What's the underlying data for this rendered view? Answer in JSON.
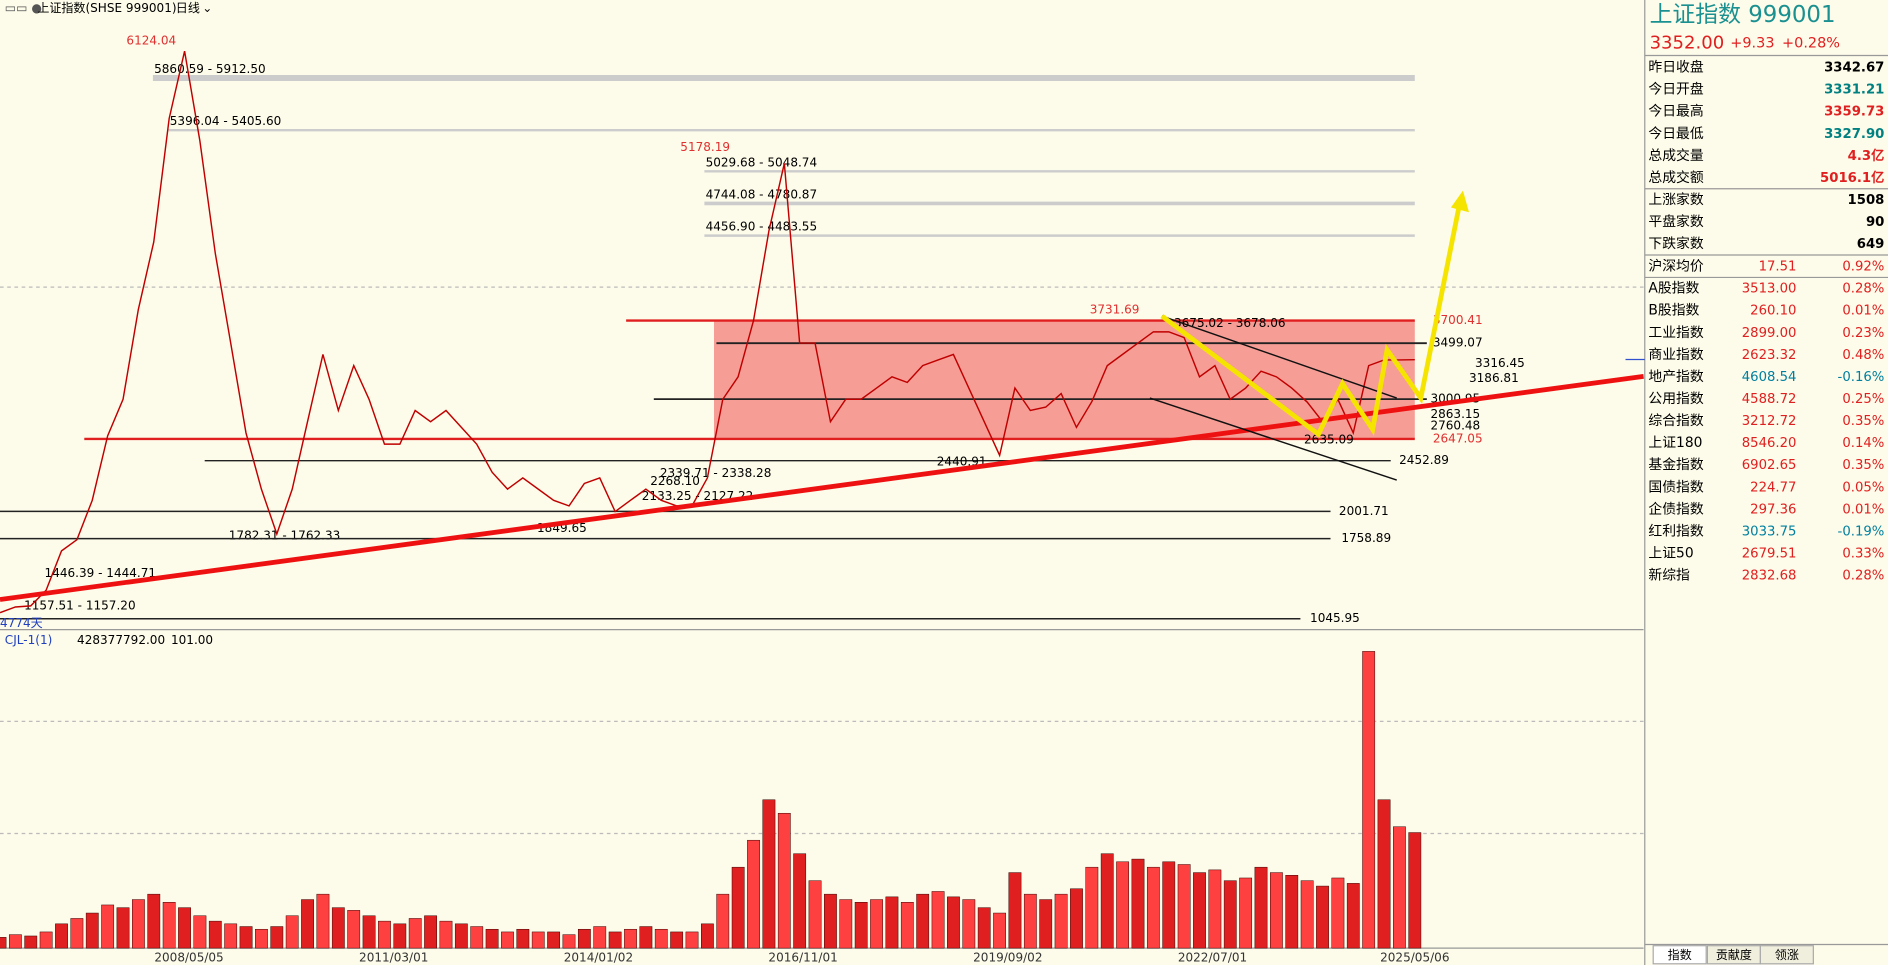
{
  "header": {
    "title": "上证指数(SHSE 999001)",
    "period": "日线"
  },
  "chart_data": {
    "type": "candlestick-screenshot",
    "ylim": [
      970,
      6555
    ],
    "price": [
      1100,
      1150,
      1160,
      1300,
      1650,
      1750,
      2100,
      2675,
      3000,
      3800,
      4400,
      5500,
      6100,
      5300,
      4300,
      3500,
      2700,
      2200,
      1800,
      2200,
      2800,
      3400,
      2900,
      3300,
      3000,
      2600,
      2600,
      2900,
      2800,
      2900,
      2750,
      2600,
      2350,
      2200,
      2300,
      2200,
      2100,
      2050,
      2250,
      2300,
      2000,
      2100,
      2200,
      2100,
      2050,
      2050,
      2300,
      3000,
      3200,
      3700,
      4500,
      5100,
      3500,
      3500,
      2800,
      3000,
      3000,
      3100,
      3200,
      3150,
      3300,
      3350,
      3400,
      3100,
      2800,
      2500,
      3100,
      2900,
      2930,
      3050,
      2750,
      2980,
      3300,
      3400,
      3500,
      3600,
      3600,
      3550,
      3200,
      3300,
      3000,
      3100,
      3250,
      3200,
      3100,
      2975,
      2800,
      3000,
      2700,
      3300,
      3350,
      3350,
      3352
    ],
    "volume_ylim": [
      0,
      1100000000
    ],
    "volume": [
      40000000,
      50000000,
      45000000,
      60000000,
      90000000,
      110000000,
      130000000,
      160000000,
      150000000,
      180000000,
      200000000,
      170000000,
      150000000,
      120000000,
      100000000,
      90000000,
      80000000,
      70000000,
      80000000,
      120000000,
      180000000,
      200000000,
      150000000,
      140000000,
      120000000,
      100000000,
      90000000,
      110000000,
      120000000,
      100000000,
      90000000,
      80000000,
      70000000,
      60000000,
      70000000,
      60000000,
      60000000,
      50000000,
      70000000,
      80000000,
      60000000,
      70000000,
      80000000,
      70000000,
      60000000,
      60000000,
      90000000,
      200000000,
      300000000,
      400000000,
      550000000,
      500000000,
      350000000,
      250000000,
      200000000,
      180000000,
      170000000,
      180000000,
      190000000,
      170000000,
      200000000,
      210000000,
      190000000,
      180000000,
      150000000,
      130000000,
      280000000,
      200000000,
      180000000,
      200000000,
      220000000,
      300000000,
      350000000,
      320000000,
      330000000,
      300000000,
      320000000,
      310000000,
      280000000,
      290000000,
      250000000,
      260000000,
      300000000,
      280000000,
      270000000,
      250000000,
      230000000,
      260000000,
      240000000,
      1100000000,
      550000000,
      450000000,
      428377792
    ],
    "peaks": [
      {
        "value": 6124.04,
        "label": "6124.04"
      },
      {
        "value": 5178.19,
        "label": "5178.19"
      },
      {
        "value": 3731.69,
        "label": "3731.69"
      },
      {
        "value": 3700.41,
        "label": "3700.41"
      },
      {
        "value": 2647.05,
        "label": "2647.05"
      }
    ],
    "levels": [
      {
        "value": 5860.59,
        "label": "5860.59 - 5912.50"
      },
      {
        "value": 5396.04,
        "label": "5396.04 - 5405.60"
      },
      {
        "value": 5029.68,
        "label": "5029.68 - 5048.74"
      },
      {
        "value": 4744.08,
        "label": "4744.08 - 4780.87"
      },
      {
        "value": 4456.9,
        "label": "4456.90 - 4483.55"
      },
      {
        "value": 3675.02,
        "label": "3675.02 - 3678.06"
      },
      {
        "value": 3499.07,
        "label": "3499.07"
      },
      {
        "value": 3316.45,
        "label": "3316.45"
      },
      {
        "value": 3186.81,
        "label": "3186.81"
      },
      {
        "value": 3000.95,
        "label": "3000.95"
      },
      {
        "value": 2863.15,
        "label": "2863.15"
      },
      {
        "value": 2760.48,
        "label": "2760.48"
      },
      {
        "value": 2635.09,
        "label": "2635.09"
      },
      {
        "value": 2452.89,
        "label": "2452.89"
      },
      {
        "value": 2440.91,
        "label": "2440.91"
      },
      {
        "value": 2339.71,
        "label": "2339.71 - 2338.28"
      },
      {
        "value": 2268.1,
        "label": "2268.10"
      },
      {
        "value": 2133.25,
        "label": "2133.25 - 2127.22"
      },
      {
        "value": 2001.71,
        "label": "2001.71"
      },
      {
        "value": 1849.65,
        "label": "1849.65"
      },
      {
        "value": 1782.31,
        "label": "1782.31 - 1762.33"
      },
      {
        "value": 1758.89,
        "label": "1758.89"
      },
      {
        "value": 1446.39,
        "label": "1446.39 - 1444.71"
      },
      {
        "value": 1157.51,
        "label": "1157.51 - 1157.20"
      },
      {
        "value": 1045.95,
        "label": "1045.95"
      }
    ],
    "days": "4774天",
    "x_labels": [
      "2008/05/05",
      "2011/03/01",
      "2014/01/02",
      "2016/11/01",
      "2019/09/02",
      "2022/07/01",
      "2025/05/06"
    ],
    "indicator": {
      "name": "CJL-1(1)",
      "value": "428377792.00",
      "extra": "101.00"
    }
  },
  "sidebar": {
    "title": "上证指数  999001",
    "price": "3352.00",
    "change": "+9.33",
    "pct": "+0.28%",
    "quote": [
      {
        "label": "昨日收盘",
        "value": "3342.67",
        "color": "#000000"
      },
      {
        "label": "今日开盘",
        "value": "3331.21",
        "color": "#008080"
      },
      {
        "label": "今日最高",
        "value": "3359.73",
        "color": "#e02020"
      },
      {
        "label": "今日最低",
        "value": "3327.90",
        "color": "#008080"
      },
      {
        "label": "总成交量",
        "value": "4.3亿",
        "color": "#e02020"
      },
      {
        "label": "总成交额",
        "value": "5016.1亿",
        "color": "#e02020"
      },
      {
        "label": "上涨家数",
        "value": "1508",
        "color": "#000000"
      },
      {
        "label": "平盘家数",
        "value": "90",
        "color": "#000000"
      },
      {
        "label": "下跌家数",
        "value": "649",
        "color": "#000000"
      }
    ],
    "indices": [
      {
        "name": "沪深均价",
        "price": "17.51",
        "change": "0.92%"
      },
      {
        "name": "A股指数",
        "price": "3513.00",
        "change": "0.28%"
      },
      {
        "name": "B股指数",
        "price": "260.10",
        "change": "0.01%"
      },
      {
        "name": "工业指数",
        "price": "2899.00",
        "change": "0.23%"
      },
      {
        "name": "商业指数",
        "price": "2623.32",
        "change": "0.48%"
      },
      {
        "name": "地产指数",
        "price": "4608.54",
        "change": "-0.16%"
      },
      {
        "name": "公用指数",
        "price": "4588.72",
        "change": "0.25%"
      },
      {
        "name": "综合指数",
        "price": "3212.72",
        "change": "0.35%"
      },
      {
        "name": "上证180",
        "price": "8546.20",
        "change": "0.14%"
      },
      {
        "name": "基金指数",
        "price": "6902.65",
        "change": "0.35%"
      },
      {
        "name": "国债指数",
        "price": "224.77",
        "change": "0.05%"
      },
      {
        "name": "企债指数",
        "price": "297.36",
        "change": "0.01%"
      },
      {
        "name": "红利指数",
        "price": "3033.75",
        "change": "-0.19%"
      },
      {
        "name": "上证50",
        "price": "2679.51",
        "change": "0.33%"
      },
      {
        "name": "新综指",
        "price": "2832.68",
        "change": "0.28%"
      }
    ],
    "tabs": [
      "指数",
      "贡献度",
      "领涨"
    ]
  }
}
